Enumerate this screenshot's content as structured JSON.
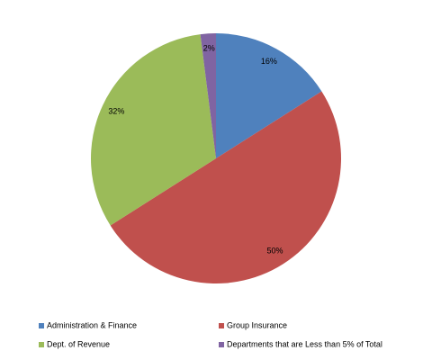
{
  "chart_data": {
    "type": "pie",
    "categories": [
      "Administration & Finance",
      "Group Insurance",
      "Dept. of Revenue",
      "Departments that are Less than 5% of Total"
    ],
    "values": [
      16,
      50,
      32,
      2
    ],
    "value_labels": [
      "16%",
      "50%",
      "32%",
      "2%"
    ],
    "colors": [
      "#4f81bd",
      "#c0504d",
      "#9bbb59",
      "#8064a2"
    ],
    "legend": "bottom"
  }
}
